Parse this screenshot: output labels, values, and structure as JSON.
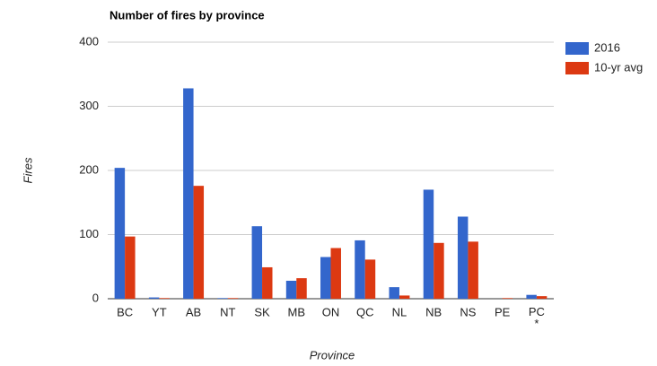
{
  "chart_data": {
    "type": "bar",
    "title": "Number of fires by province",
    "x_label": "Province",
    "y_label": "Fires",
    "categories": [
      "BC",
      "YT",
      "AB",
      "NT",
      "SK",
      "MB",
      "ON",
      "QC",
      "NL",
      "NB",
      "NS",
      "PE",
      "PC\n*"
    ],
    "series": [
      {
        "name": "2016",
        "color": "#3366cc",
        "values": [
          204,
          2,
          328,
          1,
          113,
          28,
          65,
          91,
          18,
          170,
          128,
          0,
          6
        ]
      },
      {
        "name": "10-yr avg",
        "color": "#dc3912",
        "values": [
          97,
          1,
          176,
          1,
          49,
          32,
          79,
          61,
          5,
          87,
          89,
          1,
          4
        ]
      }
    ],
    "ylim": [
      0,
      400
    ],
    "yticks": [
      0,
      100,
      200,
      300,
      400
    ],
    "grid": true,
    "legend": "right"
  }
}
